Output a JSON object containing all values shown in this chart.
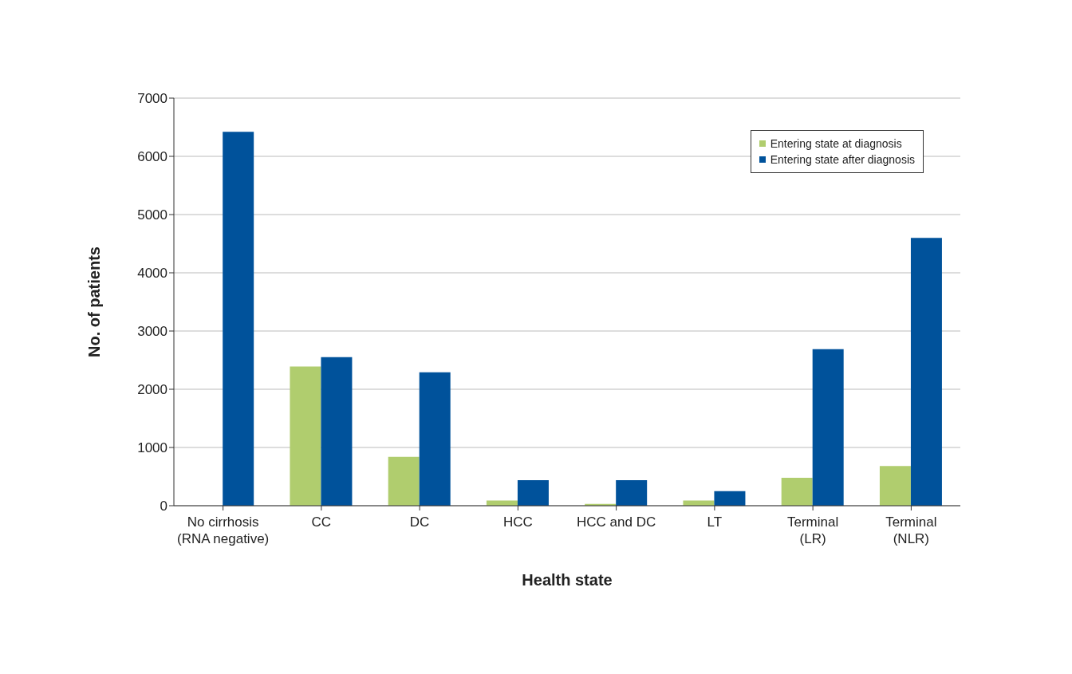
{
  "chart_data": {
    "type": "bar",
    "xlabel": "Health state",
    "ylabel": "No. of patients",
    "categories": [
      "No cirrhosis (RNA negative)",
      "CC",
      "DC",
      "HCC",
      "HCC and DC",
      "LT",
      "Terminal (LR)",
      "Terminal (NLR)"
    ],
    "series": [
      {
        "name": "Entering state at diagnosis",
        "color": "#b0cd6e",
        "values": [
          0,
          2390,
          840,
          90,
          30,
          90,
          480,
          680
        ]
      },
      {
        "name": "Entering state after diagnosis",
        "color": "#00529b",
        "values": [
          6420,
          2550,
          2290,
          440,
          440,
          250,
          2690,
          4600
        ]
      }
    ],
    "ylim": [
      0,
      7000
    ],
    "yticks": [
      0,
      1000,
      2000,
      3000,
      4000,
      5000,
      6000,
      7000
    ],
    "grid": "y",
    "legend": "top right"
  }
}
